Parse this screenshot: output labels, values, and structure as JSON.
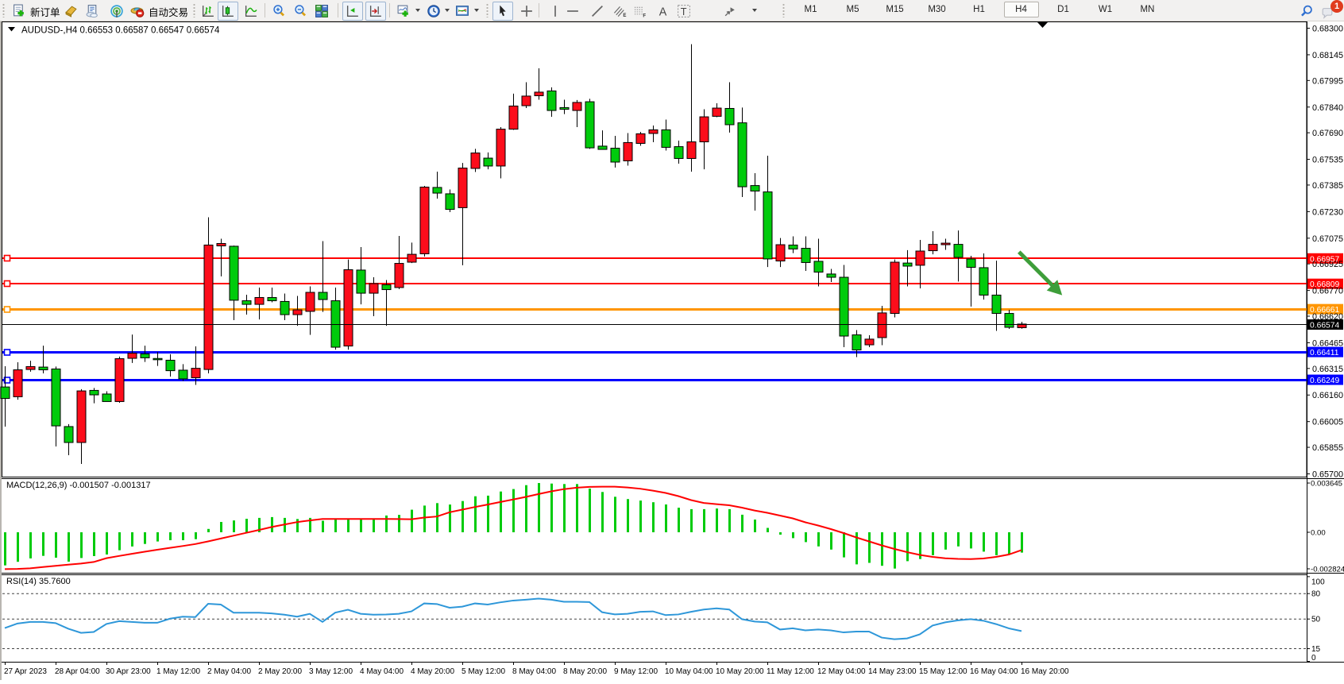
{
  "window": {
    "title": "AUDUSD-,H4"
  },
  "toolbar": {
    "buttons": {
      "new_order": "新订单",
      "auto_trading": "自动交易"
    },
    "icons": [
      "new-order",
      "history-center",
      "metaeditor",
      "market-radio",
      "auto-trading",
      "bar-chart-mode",
      "candlestick-mode",
      "line-chart-mode",
      "zoom-in",
      "zoom-out",
      "tile-windows",
      "auto-scroll",
      "chart-shift",
      "indicators-add",
      "periods",
      "templates",
      "cursor",
      "crosshair",
      "vertical-line",
      "horizontal-line",
      "trendline",
      "equidistant-channel",
      "fibonacci",
      "text",
      "text-label",
      "arrows-shapes"
    ],
    "timeframes": [
      "M1",
      "M5",
      "M15",
      "M30",
      "H1",
      "H4",
      "D1",
      "W1",
      "MN"
    ],
    "active_timeframe": "H4",
    "notification_count": "1"
  },
  "chart": {
    "symbol_label": "AUDUSD-,H4",
    "quote_open": "0.66553",
    "quote_high": "0.66587",
    "quote_low": "0.66547",
    "quote_close": "0.66574",
    "current_price": "0.66574"
  },
  "chart_data": {
    "type": "candlestick-ohlc",
    "symbol": "AUDUSD-",
    "timeframe": "H4",
    "ylim": [
      0.657,
      0.683
    ],
    "price_axis_ticks": [
      "0.68300",
      "0.68145",
      "0.67995",
      "0.67840",
      "0.67690",
      "0.67535",
      "0.67385",
      "0.67230",
      "0.67075",
      "0.66925",
      "0.66770",
      "0.66620",
      "0.66465",
      "0.66315",
      "0.66160",
      "0.66005",
      "0.65855",
      "0.65700"
    ],
    "time_labels": [
      "27 Apr 2023",
      "28 Apr 04:00",
      "30 Apr 23:00",
      "1 May 12:00",
      "2 May 04:00",
      "2 May 20:00",
      "3 May 12:00",
      "4 May 04:00",
      "4 May 20:00",
      "5 May 12:00",
      "8 May 04:00",
      "8 May 20:00",
      "9 May 12:00",
      "10 May 04:00",
      "10 May 20:00",
      "11 May 12:00",
      "12 May 04:00",
      "14 May 23:00",
      "15 May 12:00",
      "16 May 04:00",
      "16 May 20:00"
    ],
    "time_label_every_n_candles": 4,
    "ohlc": [
      [
        0.66207,
        0.66328,
        0.65976,
        0.6614
      ],
      [
        0.6615,
        0.66351,
        0.66133,
        0.66307
      ],
      [
        0.66309,
        0.6636,
        0.66296,
        0.66326
      ],
      [
        0.66323,
        0.66448,
        0.66286,
        0.66307
      ],
      [
        0.66312,
        0.66326,
        0.6586,
        0.6598
      ],
      [
        0.65976,
        0.6599,
        0.65809,
        0.65883
      ],
      [
        0.65883,
        0.66194,
        0.65758,
        0.66184
      ],
      [
        0.66187,
        0.66201,
        0.66112,
        0.66161
      ],
      [
        0.66166,
        0.66182,
        0.66122,
        0.66122
      ],
      [
        0.66122,
        0.66384,
        0.66115,
        0.66372
      ],
      [
        0.66374,
        0.66513,
        0.66347,
        0.66404
      ],
      [
        0.664,
        0.66448,
        0.66353,
        0.66377
      ],
      [
        0.66372,
        0.66411,
        0.6633,
        0.66367
      ],
      [
        0.66363,
        0.66398,
        0.66268,
        0.66302
      ],
      [
        0.66305,
        0.6634,
        0.66242,
        0.66254
      ],
      [
        0.66261,
        0.66444,
        0.66219,
        0.66316
      ],
      [
        0.66309,
        0.67197,
        0.66286,
        0.67035
      ],
      [
        0.6703,
        0.67072,
        0.66852,
        0.67044
      ],
      [
        0.67028,
        0.67032,
        0.66597,
        0.66713
      ],
      [
        0.6671,
        0.66745,
        0.66629,
        0.66689
      ],
      [
        0.66689,
        0.66787,
        0.66601,
        0.66729
      ],
      [
        0.66729,
        0.66787,
        0.66701,
        0.6671
      ],
      [
        0.66706,
        0.66752,
        0.66597,
        0.66629
      ],
      [
        0.66629,
        0.66738,
        0.66564,
        0.66657
      ],
      [
        0.66648,
        0.66794,
        0.66511,
        0.66759
      ],
      [
        0.66759,
        0.67058,
        0.66645,
        0.66717
      ],
      [
        0.6671,
        0.66787,
        0.66425,
        0.66439
      ],
      [
        0.66446,
        0.66951,
        0.66425,
        0.66891
      ],
      [
        0.66889,
        0.67023,
        0.66689,
        0.66754
      ],
      [
        0.66754,
        0.66847,
        0.6662,
        0.6681
      ],
      [
        0.66803,
        0.66831,
        0.66564,
        0.66775
      ],
      [
        0.66787,
        0.67088,
        0.66778,
        0.66928
      ],
      [
        0.66935,
        0.67049,
        0.6693,
        0.66981
      ],
      [
        0.66984,
        0.6738,
        0.66968,
        0.67373
      ],
      [
        0.67371,
        0.67463,
        0.67306,
        0.67338
      ],
      [
        0.67334,
        0.67359,
        0.67227,
        0.67243
      ],
      [
        0.67253,
        0.67514,
        0.66917,
        0.67484
      ],
      [
        0.67482,
        0.67596,
        0.67461,
        0.67572
      ],
      [
        0.67542,
        0.67575,
        0.67477,
        0.67496
      ],
      [
        0.67496,
        0.67723,
        0.67424,
        0.67711
      ],
      [
        0.67711,
        0.67918,
        0.67707,
        0.67846
      ],
      [
        0.67848,
        0.67985,
        0.67834,
        0.67904
      ],
      [
        0.67906,
        0.68066,
        0.67883,
        0.67927
      ],
      [
        0.67934,
        0.67955,
        0.67783,
        0.6782
      ],
      [
        0.67837,
        0.67883,
        0.67799,
        0.67827
      ],
      [
        0.6782,
        0.67881,
        0.67723,
        0.67867
      ],
      [
        0.67871,
        0.67888,
        0.67596,
        0.67602
      ],
      [
        0.67612,
        0.67704,
        0.67591,
        0.67593
      ],
      [
        0.676,
        0.67672,
        0.67487,
        0.67519
      ],
      [
        0.67526,
        0.67688,
        0.67498,
        0.67633
      ],
      [
        0.67628,
        0.67695,
        0.67614,
        0.67684
      ],
      [
        0.67686,
        0.67732,
        0.67635,
        0.67707
      ],
      [
        0.67707,
        0.67767,
        0.67586,
        0.67605
      ],
      [
        0.67609,
        0.67644,
        0.6751,
        0.6754
      ],
      [
        0.6754,
        0.68207,
        0.67463,
        0.67637
      ],
      [
        0.67637,
        0.67827,
        0.67477,
        0.67783
      ],
      [
        0.67786,
        0.67862,
        0.67781,
        0.67834
      ],
      [
        0.67832,
        0.67985,
        0.67691,
        0.67737
      ],
      [
        0.67748,
        0.67837,
        0.67315,
        0.67375
      ],
      [
        0.67382,
        0.67454,
        0.67236,
        0.6735
      ],
      [
        0.67345,
        0.67556,
        0.66907,
        0.66954
      ],
      [
        0.66942,
        0.67076,
        0.66907,
        0.67037
      ],
      [
        0.67035,
        0.67086,
        0.66988,
        0.67012
      ],
      [
        0.67016,
        0.67086,
        0.66884,
        0.66933
      ],
      [
        0.6694,
        0.67072,
        0.66794,
        0.66877
      ],
      [
        0.66866,
        0.66896,
        0.66819,
        0.66847
      ],
      [
        0.66847,
        0.66919,
        0.66439,
        0.66504
      ],
      [
        0.66511,
        0.66539,
        0.66381,
        0.66423
      ],
      [
        0.66453,
        0.66509,
        0.66439,
        0.66486
      ],
      [
        0.66495,
        0.6668,
        0.66451,
        0.66639
      ],
      [
        0.66636,
        0.66951,
        0.66613,
        0.66935
      ],
      [
        0.6693,
        0.67005,
        0.66794,
        0.66912
      ],
      [
        0.66917,
        0.67065,
        0.66782,
        0.67
      ],
      [
        0.67002,
        0.67116,
        0.66981,
        0.67039
      ],
      [
        0.67037,
        0.67072,
        0.67007,
        0.67046
      ],
      [
        0.67039,
        0.6712,
        0.66822,
        0.66963
      ],
      [
        0.66954,
        0.66972,
        0.66676,
        0.66905
      ],
      [
        0.66903,
        0.66986,
        0.66717,
        0.66743
      ],
      [
        0.66743,
        0.66944,
        0.66534,
        0.66636
      ],
      [
        0.66636,
        0.66657,
        0.66546,
        0.66555
      ],
      [
        0.66553,
        0.66587,
        0.66547,
        0.66574
      ]
    ],
    "colors": {
      "bull": "#FC0D1B",
      "bear": "#00CB0C",
      "wick": "#000000",
      "macd_hist": "#00CB0C",
      "macd_signal": "#FF0000",
      "rsi_line": "#2E97D9",
      "arrow": "#3E9E3A"
    },
    "hlines": [
      {
        "price": 0.66957,
        "label": "0.66957",
        "color": "#FF0000"
      },
      {
        "price": 0.66809,
        "label": "0.66809",
        "color": "#FF0000"
      },
      {
        "price": 0.66661,
        "label": "0.66661",
        "color": "#FF9500"
      },
      {
        "price": 0.66411,
        "label": "0.66411",
        "color": "#0000FF"
      },
      {
        "price": 0.66249,
        "label": "0.66249",
        "color": "#0000FF"
      }
    ],
    "arrow_annotation": {
      "from_index": 79.8,
      "from_price": 0.66995,
      "to_index": 83.2,
      "to_price": 0.66742
    },
    "indicators": [
      {
        "name": "MACD",
        "label": "MACD(12,26,9)",
        "value1": "-0.001507",
        "value2": "-0.001317",
        "scale_labels": [
          "0.003645",
          "0.00",
          "-0.002824"
        ],
        "histogram": [
          -0.002453,
          -0.002188,
          -0.001935,
          -0.001747,
          -0.001882,
          -0.002176,
          -0.001906,
          -0.001765,
          -0.001647,
          -0.001329,
          -0.001053,
          -0.000865,
          -0.000682,
          -0.000588,
          -0.000588,
          -0.000512,
          0.000247,
          0.000765,
          0.000876,
          0.001,
          0.001065,
          0.001124,
          0.001065,
          0.000982,
          0.001065,
          0.000853,
          0.000953,
          0.000953,
          0.000982,
          0.001,
          0.001241,
          0.001288,
          0.001671,
          0.001976,
          0.002159,
          0.002053,
          0.002312,
          0.002665,
          0.002712,
          0.003018,
          0.0032,
          0.003488,
          0.003645,
          0.003606,
          0.003571,
          0.003571,
          0.003235,
          0.002982,
          0.002629,
          0.002459,
          0.002347,
          0.002224,
          0.002059,
          0.001818,
          0.001712,
          0.001712,
          0.001759,
          0.001712,
          0.0013,
          0.000941,
          0.000324,
          -0.000176,
          -0.000435,
          -0.000729,
          -0.001047,
          -0.001282,
          -0.001859,
          -0.002376,
          -0.002265,
          -0.002482,
          -0.002688,
          -0.002141,
          -0.001982,
          -0.0017,
          -0.001282,
          -0.001047,
          -0.0012,
          -0.001435,
          -0.0017,
          -0.001641,
          -0.001507
        ],
        "signal": [
          -0.002729,
          -0.002712,
          -0.002671,
          -0.002576,
          -0.002482,
          -0.0024,
          -0.002318,
          -0.0022,
          -0.001918,
          -0.001753,
          -0.001594,
          -0.001441,
          -0.001294,
          -0.001153,
          -0.001018,
          -0.000871,
          -0.000676,
          -0.000465,
          -0.000253,
          -4.1e-05,
          0.000171,
          0.000388,
          0.000571,
          0.000753,
          0.000876,
          0.000988,
          0.000982,
          0.000982,
          0.000988,
          0.000988,
          0.000982,
          0.000976,
          0.000965,
          0.001088,
          0.001165,
          0.001482,
          0.001676,
          0.001871,
          0.002053,
          0.002241,
          0.002429,
          0.002618,
          0.002829,
          0.003029,
          0.003194,
          0.0033,
          0.003359,
          0.003376,
          0.003376,
          0.003318,
          0.003224,
          0.003082,
          0.002912,
          0.002676,
          0.002382,
          0.002171,
          0.002082,
          0.002,
          0.001824,
          0.001612,
          0.001441,
          0.001235,
          0.001029,
          0.000735,
          0.0005,
          0.000235,
          -5.9e-05,
          -0.000382,
          -0.000676,
          -0.000971,
          -0.001235,
          -0.001471,
          -0.001676,
          -0.001824,
          -0.001924,
          -0.001971,
          -0.001982,
          -0.001941,
          -0.001824,
          -0.001647,
          -0.001317
        ]
      },
      {
        "name": "RSI",
        "label": "RSI(14)",
        "value1": "35.7600",
        "scale_labels": [
          "100",
          "80",
          "50",
          "15",
          "0"
        ],
        "levels": [
          80,
          50,
          15
        ],
        "values": [
          39.4,
          44.7,
          46.6,
          46.6,
          45.2,
          38.5,
          33.7,
          34.7,
          44.2,
          47.5,
          46.6,
          45.6,
          45.6,
          50.4,
          52.8,
          52.3,
          68.0,
          67.1,
          57.5,
          57.5,
          57.5,
          56.6,
          55.1,
          52.8,
          56.1,
          46.6,
          57.5,
          60.9,
          56.2,
          55.1,
          55.4,
          56.2,
          59.0,
          68.4,
          67.7,
          63.3,
          64.6,
          68.4,
          67.1,
          69.7,
          71.8,
          72.8,
          74.1,
          72.8,
          70.3,
          70.3,
          70.0,
          58.0,
          55.5,
          56.2,
          58.5,
          59.0,
          54.6,
          55.4,
          58.5,
          61.2,
          62.6,
          61.2,
          49.8,
          47.0,
          46.1,
          37.6,
          39.0,
          36.6,
          37.6,
          36.6,
          34.2,
          35.2,
          35.2,
          28.1,
          26.2,
          27.1,
          31.9,
          42.3,
          46.1,
          48.4,
          49.8,
          48.0,
          44.0,
          39.0,
          35.76
        ]
      }
    ]
  }
}
